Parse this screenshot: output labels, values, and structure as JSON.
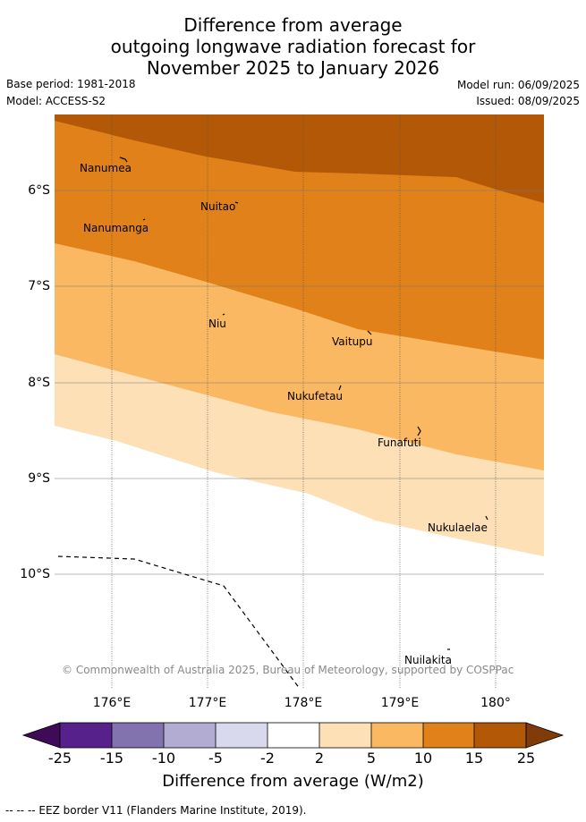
{
  "title_lines": [
    "Difference from average",
    "outgoing longwave radiation forecast for",
    "November 2025 to January 2026"
  ],
  "base_period": "Base period: 1981-2018",
  "model": "Model: ACCESS-S2",
  "model_run": "Model run: 06/09/2025",
  "issued": "Issued: 08/09/2025",
  "x_ticks": [
    "176°E",
    "177°E",
    "178°E",
    "179°E",
    "180°"
  ],
  "y_ticks": [
    "6°S",
    "7°S",
    "8°S",
    "9°S",
    "10°S"
  ],
  "islands": [
    "Nanumea",
    "Nuitao",
    "Nanumanga",
    "Niu",
    "Vaitupu",
    "Nukufetau",
    "Funafuti",
    "Nukulaelae",
    "Nuilakita"
  ],
  "copyright": "© Commonwealth of Australia 2025, Bureau of Meteorology, supported by COSPPac",
  "colorbar": {
    "labels": [
      "-25",
      "-15",
      "-10",
      "-5",
      "-2",
      "2",
      "5",
      "10",
      "15",
      "25"
    ],
    "colors": [
      "#3f0a58",
      "#56218a",
      "#8272ad",
      "#b2abd2",
      "#d8d9ec",
      "#ffffff",
      "#fde0b5",
      "#fbb862",
      "#e08219",
      "#b35806",
      "#7f3b08"
    ],
    "title": "Difference from average (W/m2)"
  },
  "legend_text": "--  --  -- EEZ border V11 (Flanders Marine Institute, 2019)."
}
